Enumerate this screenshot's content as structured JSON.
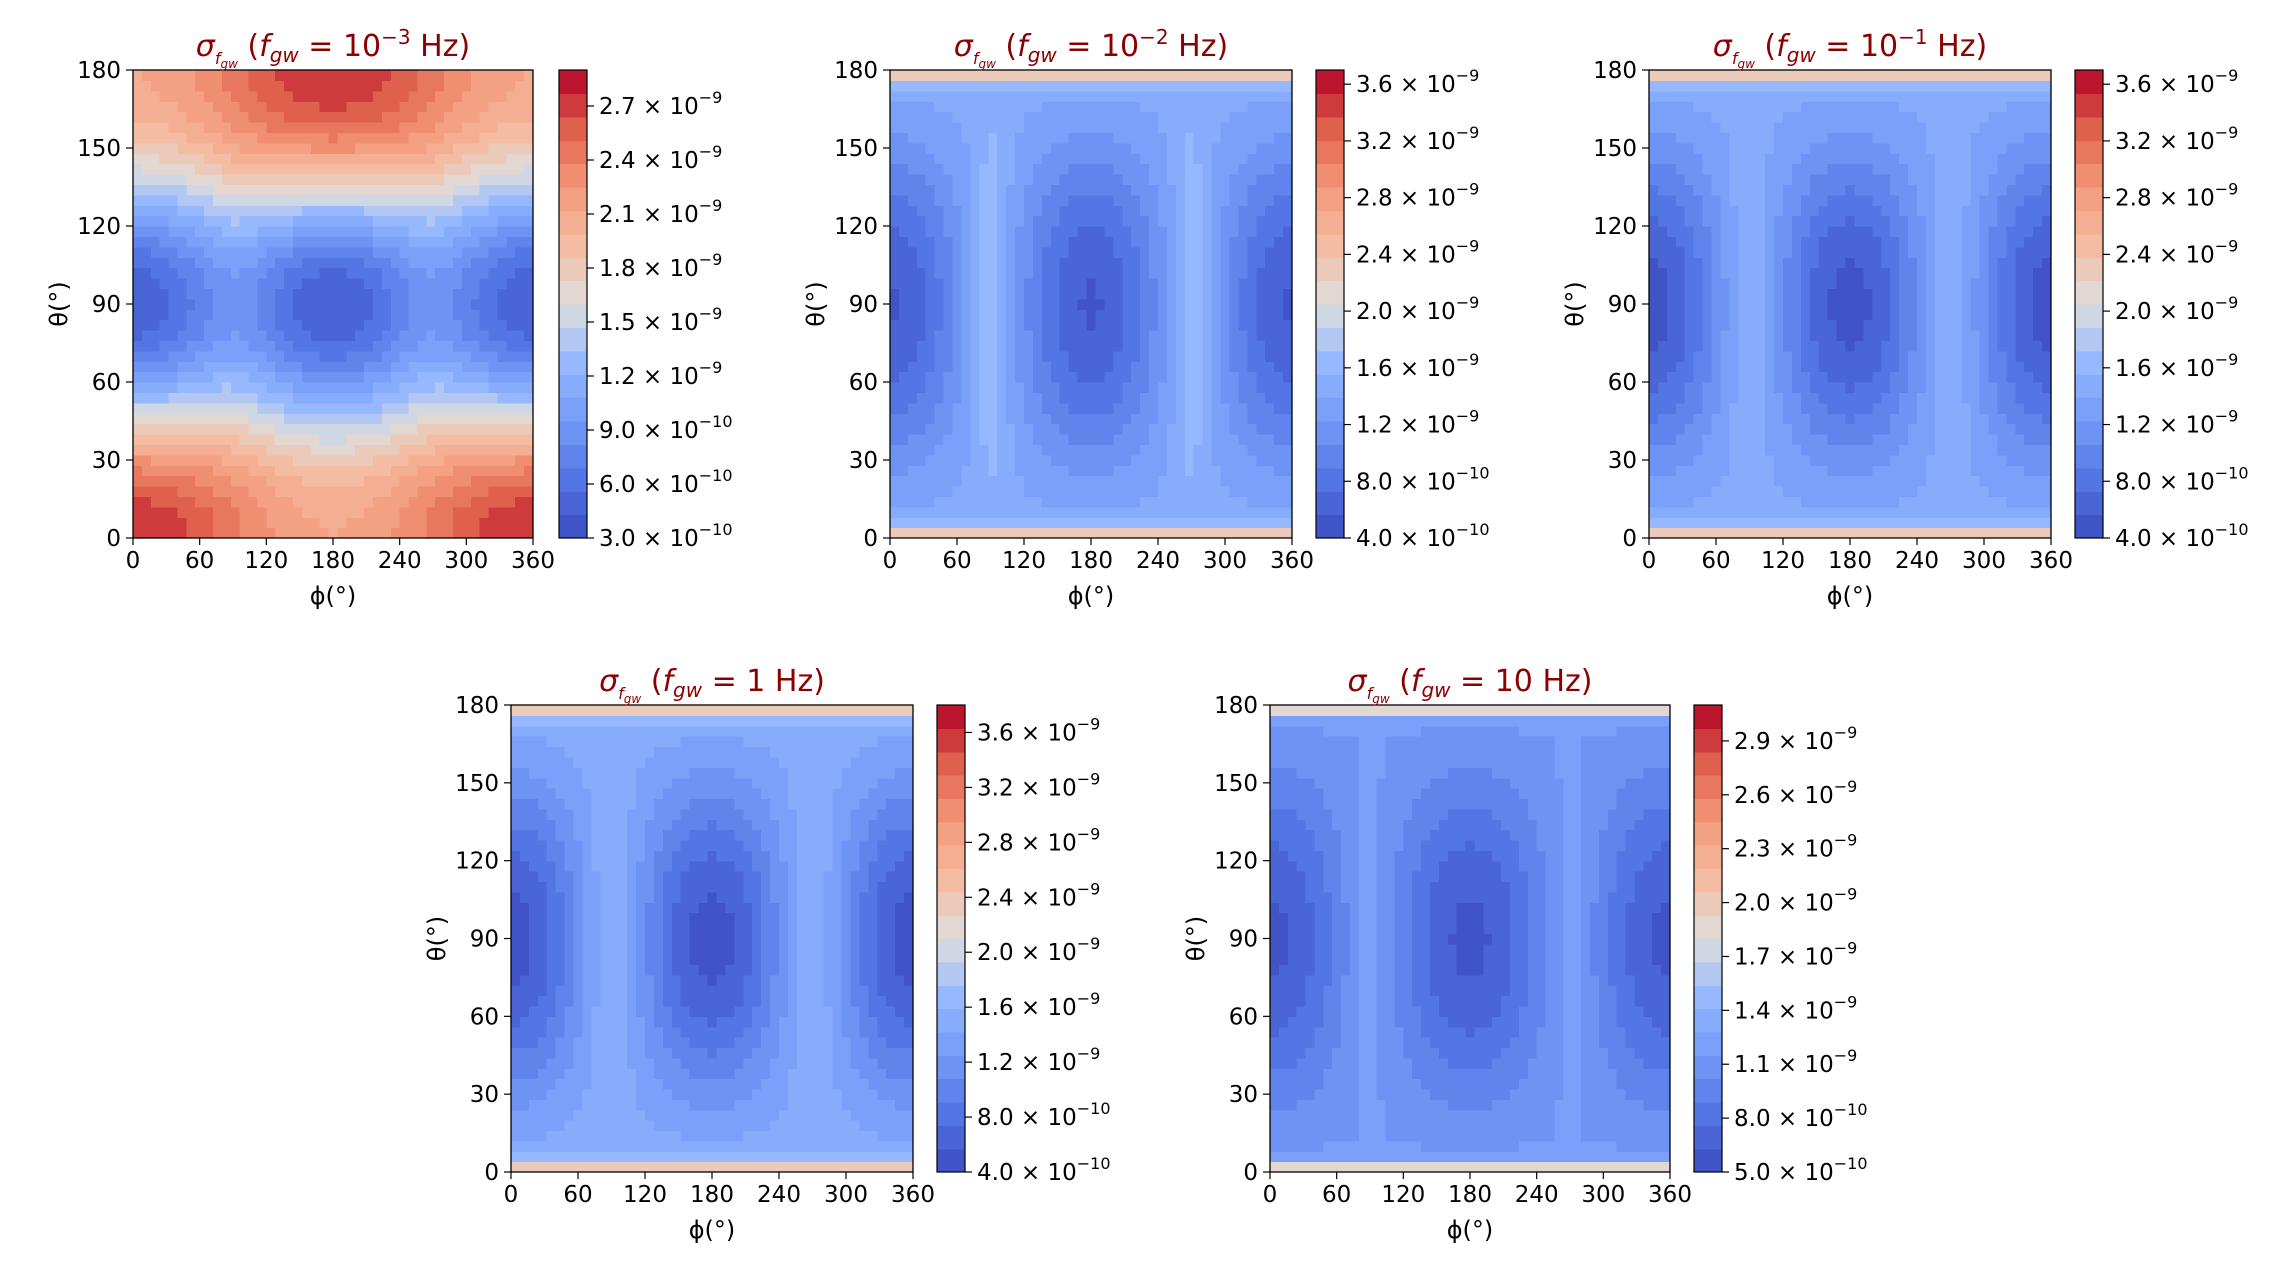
{
  "figure": {
    "colors": {
      "title": "#8b0000",
      "axis": "#000000"
    }
  },
  "chart_data": [
    {
      "type": "heatmap",
      "title_symbol": "σ",
      "title_sub": "fgw",
      "title_freq": "f",
      "title_freq_sub": "gw",
      "title_value": "10",
      "title_exp": "−3",
      "title_unit": "Hz",
      "xlabel": "ϕ(°)",
      "ylabel": "θ(°)",
      "xlim": [
        0,
        360
      ],
      "ylim": [
        0,
        180
      ],
      "xticks": [
        "0",
        "60",
        "120",
        "180",
        "240",
        "300",
        "360"
      ],
      "yticks": [
        "0",
        "30",
        "60",
        "90",
        "120",
        "150",
        "180"
      ],
      "colorbar": {
        "min": 3e-10,
        "max": 2.9e-09,
        "ticks": [
          {
            "v": 3e-10,
            "m": "3.0",
            "e": "−10"
          },
          {
            "v": 6e-10,
            "m": "6.0",
            "e": "−10"
          },
          {
            "v": 9e-10,
            "m": "9.0",
            "e": "−10"
          },
          {
            "v": 1.2e-09,
            "m": "1.2",
            "e": "−9"
          },
          {
            "v": 1.5e-09,
            "m": "1.5",
            "e": "−9"
          },
          {
            "v": 1.8e-09,
            "m": "1.8",
            "e": "−9"
          },
          {
            "v": 2.1e-09,
            "m": "2.1",
            "e": "−9"
          },
          {
            "v": 2.4e-09,
            "m": "2.4",
            "e": "−9"
          },
          {
            "v": 2.7e-09,
            "m": "2.7",
            "e": "−9"
          }
        ]
      },
      "field": {
        "model": "low",
        "hi_a": 2.75e-09,
        "hi_b": 2.2e-09,
        "lo": 4.5e-10,
        "mid": 1.35e-09
      }
    },
    {
      "type": "heatmap",
      "title_symbol": "σ",
      "title_sub": "fgw",
      "title_freq": "f",
      "title_freq_sub": "gw",
      "title_value": "10",
      "title_exp": "−2",
      "title_unit": "Hz",
      "xlabel": "ϕ(°)",
      "ylabel": "θ(°)",
      "xlim": [
        0,
        360
      ],
      "ylim": [
        0,
        180
      ],
      "xticks": [
        "0",
        "60",
        "120",
        "180",
        "240",
        "300",
        "360"
      ],
      "yticks": [
        "0",
        "30",
        "60",
        "90",
        "120",
        "150",
        "180"
      ],
      "colorbar": {
        "min": 4e-10,
        "max": 3.7e-09,
        "ticks": [
          {
            "v": 4e-10,
            "m": "4.0",
            "e": "−10"
          },
          {
            "v": 8e-10,
            "m": "8.0",
            "e": "−10"
          },
          {
            "v": 1.2e-09,
            "m": "1.2",
            "e": "−9"
          },
          {
            "v": 1.6e-09,
            "m": "1.6",
            "e": "−9"
          },
          {
            "v": 2e-09,
            "m": "2.0",
            "e": "−9"
          },
          {
            "v": 2.4e-09,
            "m": "2.4",
            "e": "−9"
          },
          {
            "v": 2.8e-09,
            "m": "2.8",
            "e": "−9"
          },
          {
            "v": 3.2e-09,
            "m": "3.2",
            "e": "−9"
          },
          {
            "v": 3.6e-09,
            "m": "3.6",
            "e": "−9"
          }
        ]
      },
      "field": {
        "model": "high",
        "base": 1.45e-09,
        "depth": 9e-10,
        "edge": 3.6e-09,
        "ridge": 1.7e-09
      }
    },
    {
      "type": "heatmap",
      "title_symbol": "σ",
      "title_sub": "fgw",
      "title_freq": "f",
      "title_freq_sub": "gw",
      "title_value": "10",
      "title_exp": "−1",
      "title_unit": "Hz",
      "xlabel": "ϕ(°)",
      "ylabel": "θ(°)",
      "xlim": [
        0,
        360
      ],
      "ylim": [
        0,
        180
      ],
      "xticks": [
        "0",
        "60",
        "120",
        "180",
        "240",
        "300",
        "360"
      ],
      "yticks": [
        "0",
        "30",
        "60",
        "90",
        "120",
        "150",
        "180"
      ],
      "colorbar": {
        "min": 4e-10,
        "max": 3.7e-09,
        "ticks": [
          {
            "v": 4e-10,
            "m": "4.0",
            "e": "−10"
          },
          {
            "v": 8e-10,
            "m": "8.0",
            "e": "−10"
          },
          {
            "v": 1.2e-09,
            "m": "1.2",
            "e": "−9"
          },
          {
            "v": 1.6e-09,
            "m": "1.6",
            "e": "−9"
          },
          {
            "v": 2e-09,
            "m": "2.0",
            "e": "−9"
          },
          {
            "v": 2.4e-09,
            "m": "2.4",
            "e": "−9"
          },
          {
            "v": 2.8e-09,
            "m": "2.8",
            "e": "−9"
          },
          {
            "v": 3.2e-09,
            "m": "3.2",
            "e": "−9"
          },
          {
            "v": 3.6e-09,
            "m": "3.6",
            "e": "−9"
          }
        ]
      },
      "field": {
        "model": "high",
        "base": 1.45e-09,
        "depth": 9.5e-10,
        "edge": 3.6e-09,
        "ridge": 1.55e-09
      }
    },
    {
      "type": "heatmap",
      "title_symbol": "σ",
      "title_sub": "fgw",
      "title_freq": "f",
      "title_freq_sub": "gw",
      "title_value": "1",
      "title_exp": "",
      "title_unit": "Hz",
      "xlabel": "ϕ(°)",
      "ylabel": "θ(°)",
      "xlim": [
        0,
        360
      ],
      "ylim": [
        0,
        180
      ],
      "xticks": [
        "0",
        "60",
        "120",
        "180",
        "240",
        "300",
        "360"
      ],
      "yticks": [
        "0",
        "30",
        "60",
        "90",
        "120",
        "150",
        "180"
      ],
      "colorbar": {
        "min": 4e-10,
        "max": 3.8e-09,
        "ticks": [
          {
            "v": 4e-10,
            "m": "4.0",
            "e": "−10"
          },
          {
            "v": 8e-10,
            "m": "8.0",
            "e": "−10"
          },
          {
            "v": 1.2e-09,
            "m": "1.2",
            "e": "−9"
          },
          {
            "v": 1.6e-09,
            "m": "1.6",
            "e": "−9"
          },
          {
            "v": 2e-09,
            "m": "2.0",
            "e": "−9"
          },
          {
            "v": 2.4e-09,
            "m": "2.4",
            "e": "−9"
          },
          {
            "v": 2.8e-09,
            "m": "2.8",
            "e": "−9"
          },
          {
            "v": 3.2e-09,
            "m": "3.2",
            "e": "−9"
          },
          {
            "v": 3.6e-09,
            "m": "3.6",
            "e": "−9"
          }
        ]
      },
      "field": {
        "model": "high",
        "base": 1.5e-09,
        "depth": 1e-09,
        "edge": 3.7e-09,
        "ridge": 1.6e-09
      }
    },
    {
      "type": "heatmap",
      "title_symbol": "σ",
      "title_sub": "fgw",
      "title_freq": "f",
      "title_freq_sub": "gw",
      "title_value": "10",
      "title_exp": "",
      "title_unit": "Hz",
      "xlabel": "ϕ(°)",
      "ylabel": "θ(°)",
      "xlim": [
        0,
        360
      ],
      "ylim": [
        0,
        180
      ],
      "xticks": [
        "0",
        "60",
        "120",
        "180",
        "240",
        "300",
        "360"
      ],
      "yticks": [
        "0",
        "30",
        "60",
        "90",
        "120",
        "150",
        "180"
      ],
      "colorbar": {
        "min": 5e-10,
        "max": 3.1e-09,
        "ticks": [
          {
            "v": 5e-10,
            "m": "5.0",
            "e": "−10"
          },
          {
            "v": 8e-10,
            "m": "8.0",
            "e": "−10"
          },
          {
            "v": 1.1e-09,
            "m": "1.1",
            "e": "−9"
          },
          {
            "v": 1.4e-09,
            "m": "1.4",
            "e": "−9"
          },
          {
            "v": 1.7e-09,
            "m": "1.7",
            "e": "−9"
          },
          {
            "v": 2e-09,
            "m": "2.0",
            "e": "−9"
          },
          {
            "v": 2.3e-09,
            "m": "2.3",
            "e": "−9"
          },
          {
            "v": 2.6e-09,
            "m": "2.6",
            "e": "−9"
          },
          {
            "v": 2.9e-09,
            "m": "2.9",
            "e": "−9"
          }
        ]
      },
      "field": {
        "model": "flat",
        "base": 1.15e-09,
        "depth": 5.5e-10,
        "edge": 3e-09,
        "ridge": 1.2e-09
      }
    }
  ]
}
